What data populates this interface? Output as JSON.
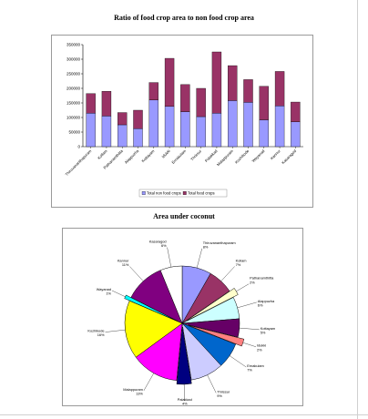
{
  "chart_data": [
    {
      "type": "bar",
      "title": "Ratio of food crop area to non food crop area",
      "categories": [
        "Thiruvananthapuram",
        "Kollam",
        "Pathanamthitta",
        "Alappuzha",
        "Kottayam",
        "Idukki",
        "Ernakulam",
        "Thrissur",
        "Palakkad",
        "Malappuram",
        "Kozhikode",
        "Wayanad",
        "Kannur",
        "Kasaragod"
      ],
      "series": [
        {
          "name": "Total non food crops",
          "color": "#9999ff",
          "values": [
            115000,
            105000,
            75000,
            62000,
            160000,
            138000,
            120000,
            103000,
            115000,
            158000,
            152000,
            92000,
            140000,
            85000
          ]
        },
        {
          "name": "Total food crops",
          "color": "#993366",
          "values": [
            67000,
            85000,
            42000,
            63000,
            60000,
            165000,
            93000,
            97000,
            210000,
            120000,
            78000,
            115000,
            118000,
            68000
          ]
        }
      ],
      "stacked": true,
      "ylim": [
        0,
        350000
      ],
      "yticks": [
        "0",
        "50000",
        "100000",
        "150000",
        "200000",
        "250000",
        "300000",
        "350000"
      ],
      "grid": false,
      "legend": "bottom"
    },
    {
      "type": "pie",
      "title": "Area under coconut",
      "slices": [
        {
          "label": "Thiruvananthapuram",
          "pct": "8%",
          "value": 8,
          "color": "#9999ff"
        },
        {
          "label": "Kollam",
          "pct": "7%",
          "value": 7,
          "color": "#993366"
        },
        {
          "label": "Pathanamthitta",
          "pct": "2%",
          "value": 2,
          "color": "#ffffcc"
        },
        {
          "label": "Alappuzha",
          "pct": "6%",
          "value": 6,
          "color": "#ccffff"
        },
        {
          "label": "Kottayam",
          "pct": "5%",
          "value": 5,
          "color": "#660066"
        },
        {
          "label": "Idukki",
          "pct": "2%",
          "value": 2,
          "color": "#ff8080"
        },
        {
          "label": "Ernakulam",
          "pct": "7%",
          "value": 7,
          "color": "#0066cc"
        },
        {
          "label": "Thrissur",
          "pct": "9%",
          "value": 9,
          "color": "#ccccff"
        },
        {
          "label": "Palakkad",
          "pct": "4%",
          "value": 4,
          "color": "#000080"
        },
        {
          "label": "Malappuram",
          "pct": "13%",
          "value": 13,
          "color": "#ff00ff"
        },
        {
          "label": "Kozhikode",
          "pct": "16%",
          "value": 16,
          "color": "#ffff00"
        },
        {
          "label": "Wayanad",
          "pct": "1%",
          "value": 1,
          "color": "#00ffff"
        },
        {
          "label": "Kannur",
          "pct": "11%",
          "value": 11,
          "color": "#800080"
        },
        {
          "label": "Kasaragod",
          "pct": "6%",
          "value": 6,
          "color": "#ffffff"
        }
      ]
    }
  ]
}
